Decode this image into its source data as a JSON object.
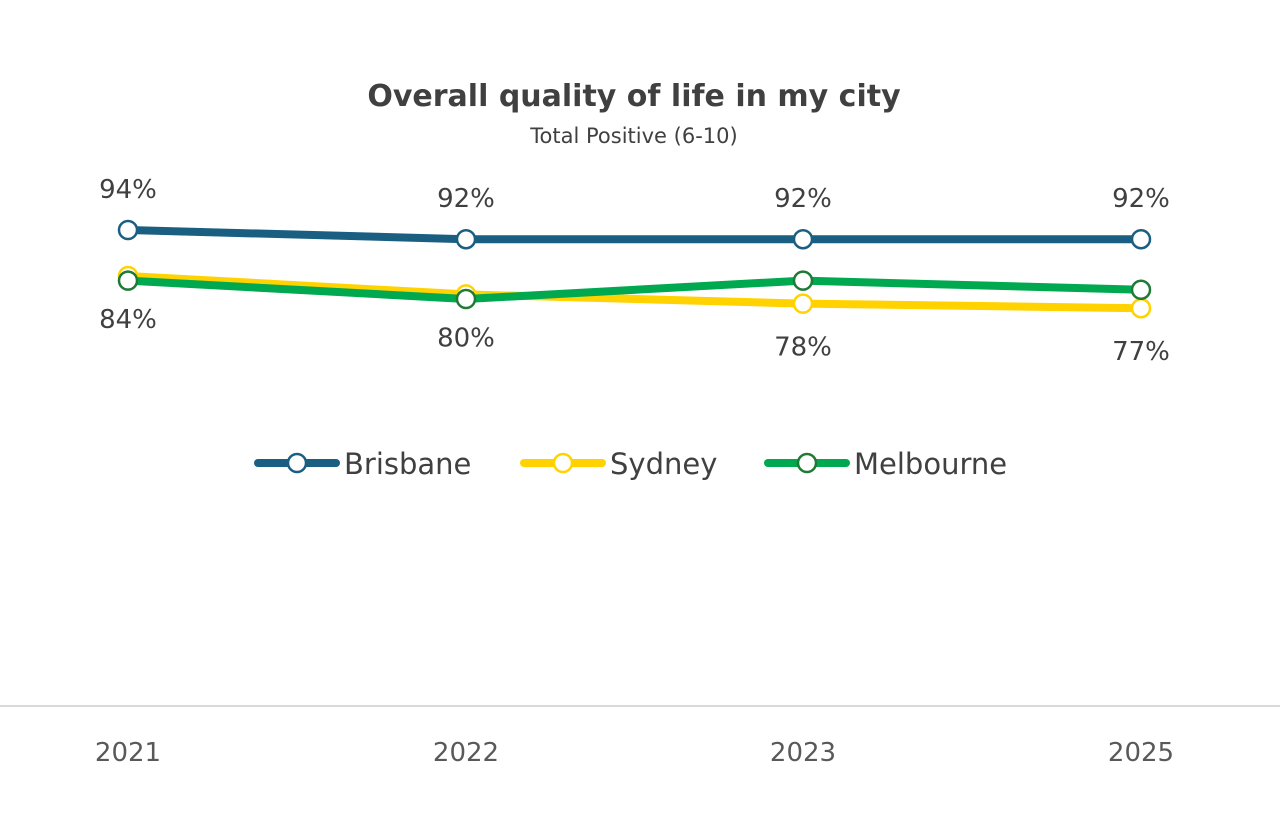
{
  "chart_data": {
    "type": "line",
    "title": "Overall quality of life in my city",
    "subtitle": "Total Positive (6-10)",
    "categories": [
      "2021",
      "2022",
      "2023",
      "2025"
    ],
    "series": [
      {
        "name": "Brisbane",
        "values": [
          94,
          92,
          92,
          92
        ],
        "labels": [
          "94%",
          "92%",
          "92%",
          "92%"
        ],
        "label_position": "above",
        "color": "#1a5e82",
        "marker_stroke": "#1a5e82"
      },
      {
        "name": "Sydney",
        "values": [
          84,
          80,
          78,
          77
        ],
        "labels": [
          "84%",
          "80%",
          "78%",
          "77%"
        ],
        "label_position": "below",
        "color": "#ffd200",
        "marker_stroke": "#ffd200"
      },
      {
        "name": "Melbourne",
        "values": [
          83,
          79,
          83,
          81
        ],
        "labels": [],
        "color": "#00a84f",
        "marker_stroke": "#1e7a35"
      }
    ],
    "legend_position": "bottom-center",
    "grid": false,
    "y_axis_visible": false
  }
}
